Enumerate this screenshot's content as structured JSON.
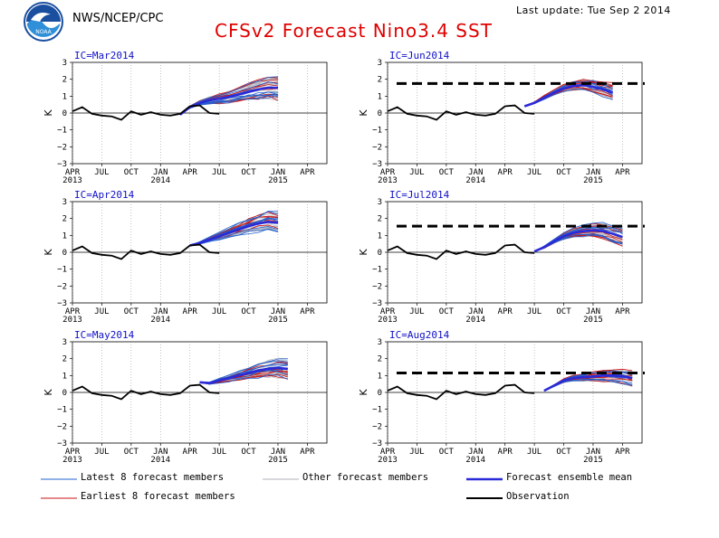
{
  "header": {
    "source": "NWS/NCEP/CPC",
    "title": "CFSv2 Forecast Nino3.4 SST",
    "last_update": "Last update: Tue Sep 2 2014",
    "logo_text": "NOAA"
  },
  "colors": {
    "latest": "#2060d0",
    "other": "#b0b0b8",
    "mean": "#2a2ad8",
    "earliest": "#c81010",
    "observation": "#000000",
    "panel_title": "#1010c8",
    "title": "#e00000"
  },
  "legend": [
    {
      "label": "Latest 8 forecast members",
      "key": "latest"
    },
    {
      "label": "Other forecast members",
      "key": "other"
    },
    {
      "label": "Forecast ensemble mean",
      "key": "mean"
    },
    {
      "label": "Earliest 8 forecast members",
      "key": "earliest"
    },
    {
      "label": "Observation",
      "key": "observation"
    }
  ],
  "chart_data": [
    {
      "type": "line",
      "title": "IC=Mar2014",
      "ylabel": "K",
      "ylim": [
        -3,
        3
      ],
      "yticks": [
        -3,
        -2,
        -1,
        0,
        1,
        2,
        3
      ],
      "xlim": [
        0,
        26
      ],
      "xticks": [
        {
          "m": 0,
          "label": "APR",
          "year": "2013"
        },
        {
          "m": 3,
          "label": "JUL"
        },
        {
          "m": 6,
          "label": "OCT"
        },
        {
          "m": 9,
          "label": "JAN",
          "year": "2014"
        },
        {
          "m": 12,
          "label": "APR"
        },
        {
          "m": 15,
          "label": "JUL"
        },
        {
          "m": 18,
          "label": "OCT"
        },
        {
          "m": 21,
          "label": "JAN",
          "year": "2015"
        },
        {
          "m": 24,
          "label": "APR"
        }
      ],
      "observation": {
        "start": 0,
        "values": [
          0.1,
          0.35,
          -0.05,
          -0.15,
          -0.2,
          -0.4,
          0.1,
          -0.1,
          0.05,
          -0.1,
          -0.15,
          -0.05,
          0.4,
          0.45,
          0.0,
          -0.05
        ]
      },
      "ensemble_mean": {
        "start": 11,
        "values": [
          -0.1,
          0.35,
          0.6,
          0.75,
          0.85,
          0.95,
          1.1,
          1.25,
          1.4,
          1.5,
          1.5
        ]
      },
      "spread": 1.4
    },
    {
      "type": "line",
      "title": "IC=Jun2014",
      "ylabel": "K",
      "ylim": [
        -3,
        3
      ],
      "yticks": [
        -3,
        -2,
        -1,
        0,
        1,
        2,
        3
      ],
      "xlim": [
        0,
        26
      ],
      "xticks": [
        {
          "m": 0,
          "label": "APR",
          "year": "2013"
        },
        {
          "m": 3,
          "label": "JUL"
        },
        {
          "m": 6,
          "label": "OCT"
        },
        {
          "m": 9,
          "label": "JAN",
          "year": "2014"
        },
        {
          "m": 12,
          "label": "APR"
        },
        {
          "m": 15,
          "label": "JUL"
        },
        {
          "m": 18,
          "label": "OCT"
        },
        {
          "m": 21,
          "label": "JAN",
          "year": "2015"
        },
        {
          "m": 24,
          "label": "APR"
        }
      ],
      "observation": {
        "start": 0,
        "values": [
          0.1,
          0.35,
          -0.05,
          -0.15,
          -0.2,
          -0.4,
          0.1,
          -0.1,
          0.05,
          -0.1,
          -0.15,
          -0.05,
          0.4,
          0.45,
          0.0,
          -0.05
        ]
      },
      "ensemble_mean": {
        "start": 14,
        "values": [
          0.4,
          0.6,
          0.9,
          1.2,
          1.45,
          1.6,
          1.65,
          1.55,
          1.4,
          1.2
        ]
      },
      "spread": 1.1,
      "reference_level": 1.75
    },
    {
      "type": "line",
      "title": "IC=Apr2014",
      "ylabel": "K",
      "ylim": [
        -3,
        3
      ],
      "yticks": [
        -3,
        -2,
        -1,
        0,
        1,
        2,
        3
      ],
      "xlim": [
        0,
        26
      ],
      "xticks": [
        {
          "m": 0,
          "label": "APR",
          "year": "2013"
        },
        {
          "m": 3,
          "label": "JUL"
        },
        {
          "m": 6,
          "label": "OCT"
        },
        {
          "m": 9,
          "label": "JAN",
          "year": "2014"
        },
        {
          "m": 12,
          "label": "APR"
        },
        {
          "m": 15,
          "label": "JUL"
        },
        {
          "m": 18,
          "label": "OCT"
        },
        {
          "m": 21,
          "label": "JAN",
          "year": "2015"
        },
        {
          "m": 24,
          "label": "APR"
        }
      ],
      "observation": {
        "start": 0,
        "values": [
          0.1,
          0.35,
          -0.05,
          -0.15,
          -0.2,
          -0.4,
          0.1,
          -0.1,
          0.05,
          -0.1,
          -0.15,
          -0.05,
          0.4,
          0.45,
          0.0,
          -0.05
        ]
      },
      "ensemble_mean": {
        "start": 12,
        "values": [
          0.4,
          0.55,
          0.75,
          0.95,
          1.15,
          1.35,
          1.55,
          1.7,
          1.8,
          1.75
        ]
      },
      "spread": 1.3
    },
    {
      "type": "line",
      "title": "IC=Jul2014",
      "ylabel": "K",
      "ylim": [
        -3,
        3
      ],
      "yticks": [
        -3,
        -2,
        -1,
        0,
        1,
        2,
        3
      ],
      "xlim": [
        0,
        26
      ],
      "xticks": [
        {
          "m": 0,
          "label": "APR",
          "year": "2013"
        },
        {
          "m": 3,
          "label": "JUL"
        },
        {
          "m": 6,
          "label": "OCT"
        },
        {
          "m": 9,
          "label": "JAN",
          "year": "2014"
        },
        {
          "m": 12,
          "label": "APR"
        },
        {
          "m": 15,
          "label": "JUL"
        },
        {
          "m": 18,
          "label": "OCT"
        },
        {
          "m": 21,
          "label": "JAN",
          "year": "2015"
        },
        {
          "m": 24,
          "label": "APR"
        }
      ],
      "observation": {
        "start": 0,
        "values": [
          0.1,
          0.35,
          -0.05,
          -0.15,
          -0.2,
          -0.4,
          0.1,
          -0.1,
          0.05,
          -0.1,
          -0.15,
          -0.05,
          0.4,
          0.45,
          0.0,
          -0.05
        ]
      },
      "ensemble_mean": {
        "start": 15,
        "values": [
          0.05,
          0.3,
          0.65,
          0.95,
          1.15,
          1.25,
          1.3,
          1.25,
          1.1,
          0.9
        ]
      },
      "spread": 1.2,
      "reference_level": 1.55
    },
    {
      "type": "line",
      "title": "IC=May2014",
      "ylabel": "K",
      "ylim": [
        -3,
        3
      ],
      "yticks": [
        -3,
        -2,
        -1,
        0,
        1,
        2,
        3
      ],
      "xlim": [
        0,
        26
      ],
      "xticks": [
        {
          "m": 0,
          "label": "APR",
          "year": "2013"
        },
        {
          "m": 3,
          "label": "JUL"
        },
        {
          "m": 6,
          "label": "OCT"
        },
        {
          "m": 9,
          "label": "JAN",
          "year": "2014"
        },
        {
          "m": 12,
          "label": "APR"
        },
        {
          "m": 15,
          "label": "JUL"
        },
        {
          "m": 18,
          "label": "OCT"
        },
        {
          "m": 21,
          "label": "JAN",
          "year": "2015"
        },
        {
          "m": 24,
          "label": "APR"
        }
      ],
      "observation": {
        "start": 0,
        "values": [
          0.1,
          0.35,
          -0.05,
          -0.15,
          -0.2,
          -0.4,
          0.1,
          -0.1,
          0.05,
          -0.1,
          -0.15,
          -0.05,
          0.4,
          0.45,
          0.0,
          -0.05
        ]
      },
      "ensemble_mean": {
        "start": 13,
        "values": [
          0.6,
          0.55,
          0.7,
          0.85,
          1.0,
          1.15,
          1.3,
          1.4,
          1.45,
          1.4
        ]
      },
      "spread": 1.2
    },
    {
      "type": "line",
      "title": "IC=Aug2014",
      "ylabel": "K",
      "ylim": [
        -3,
        3
      ],
      "yticks": [
        -3,
        -2,
        -1,
        0,
        1,
        2,
        3
      ],
      "xlim": [
        0,
        26
      ],
      "xticks": [
        {
          "m": 0,
          "label": "APR",
          "year": "2013"
        },
        {
          "m": 3,
          "label": "JUL"
        },
        {
          "m": 6,
          "label": "OCT"
        },
        {
          "m": 9,
          "label": "JAN",
          "year": "2014"
        },
        {
          "m": 12,
          "label": "APR"
        },
        {
          "m": 15,
          "label": "JUL"
        },
        {
          "m": 18,
          "label": "OCT"
        },
        {
          "m": 21,
          "label": "JAN",
          "year": "2015"
        },
        {
          "m": 24,
          "label": "APR"
        }
      ],
      "observation": {
        "start": 0,
        "values": [
          0.1,
          0.35,
          -0.05,
          -0.15,
          -0.2,
          -0.4,
          0.1,
          -0.1,
          0.05,
          -0.1,
          -0.15,
          -0.05,
          0.4,
          0.45,
          0.0,
          -0.05
        ]
      },
      "ensemble_mean": {
        "start": 16,
        "values": [
          0.1,
          0.4,
          0.7,
          0.85,
          0.9,
          0.95,
          1.0,
          1.0,
          0.95,
          0.85
        ]
      },
      "spread": 1.0,
      "reference_level": 1.15
    }
  ]
}
